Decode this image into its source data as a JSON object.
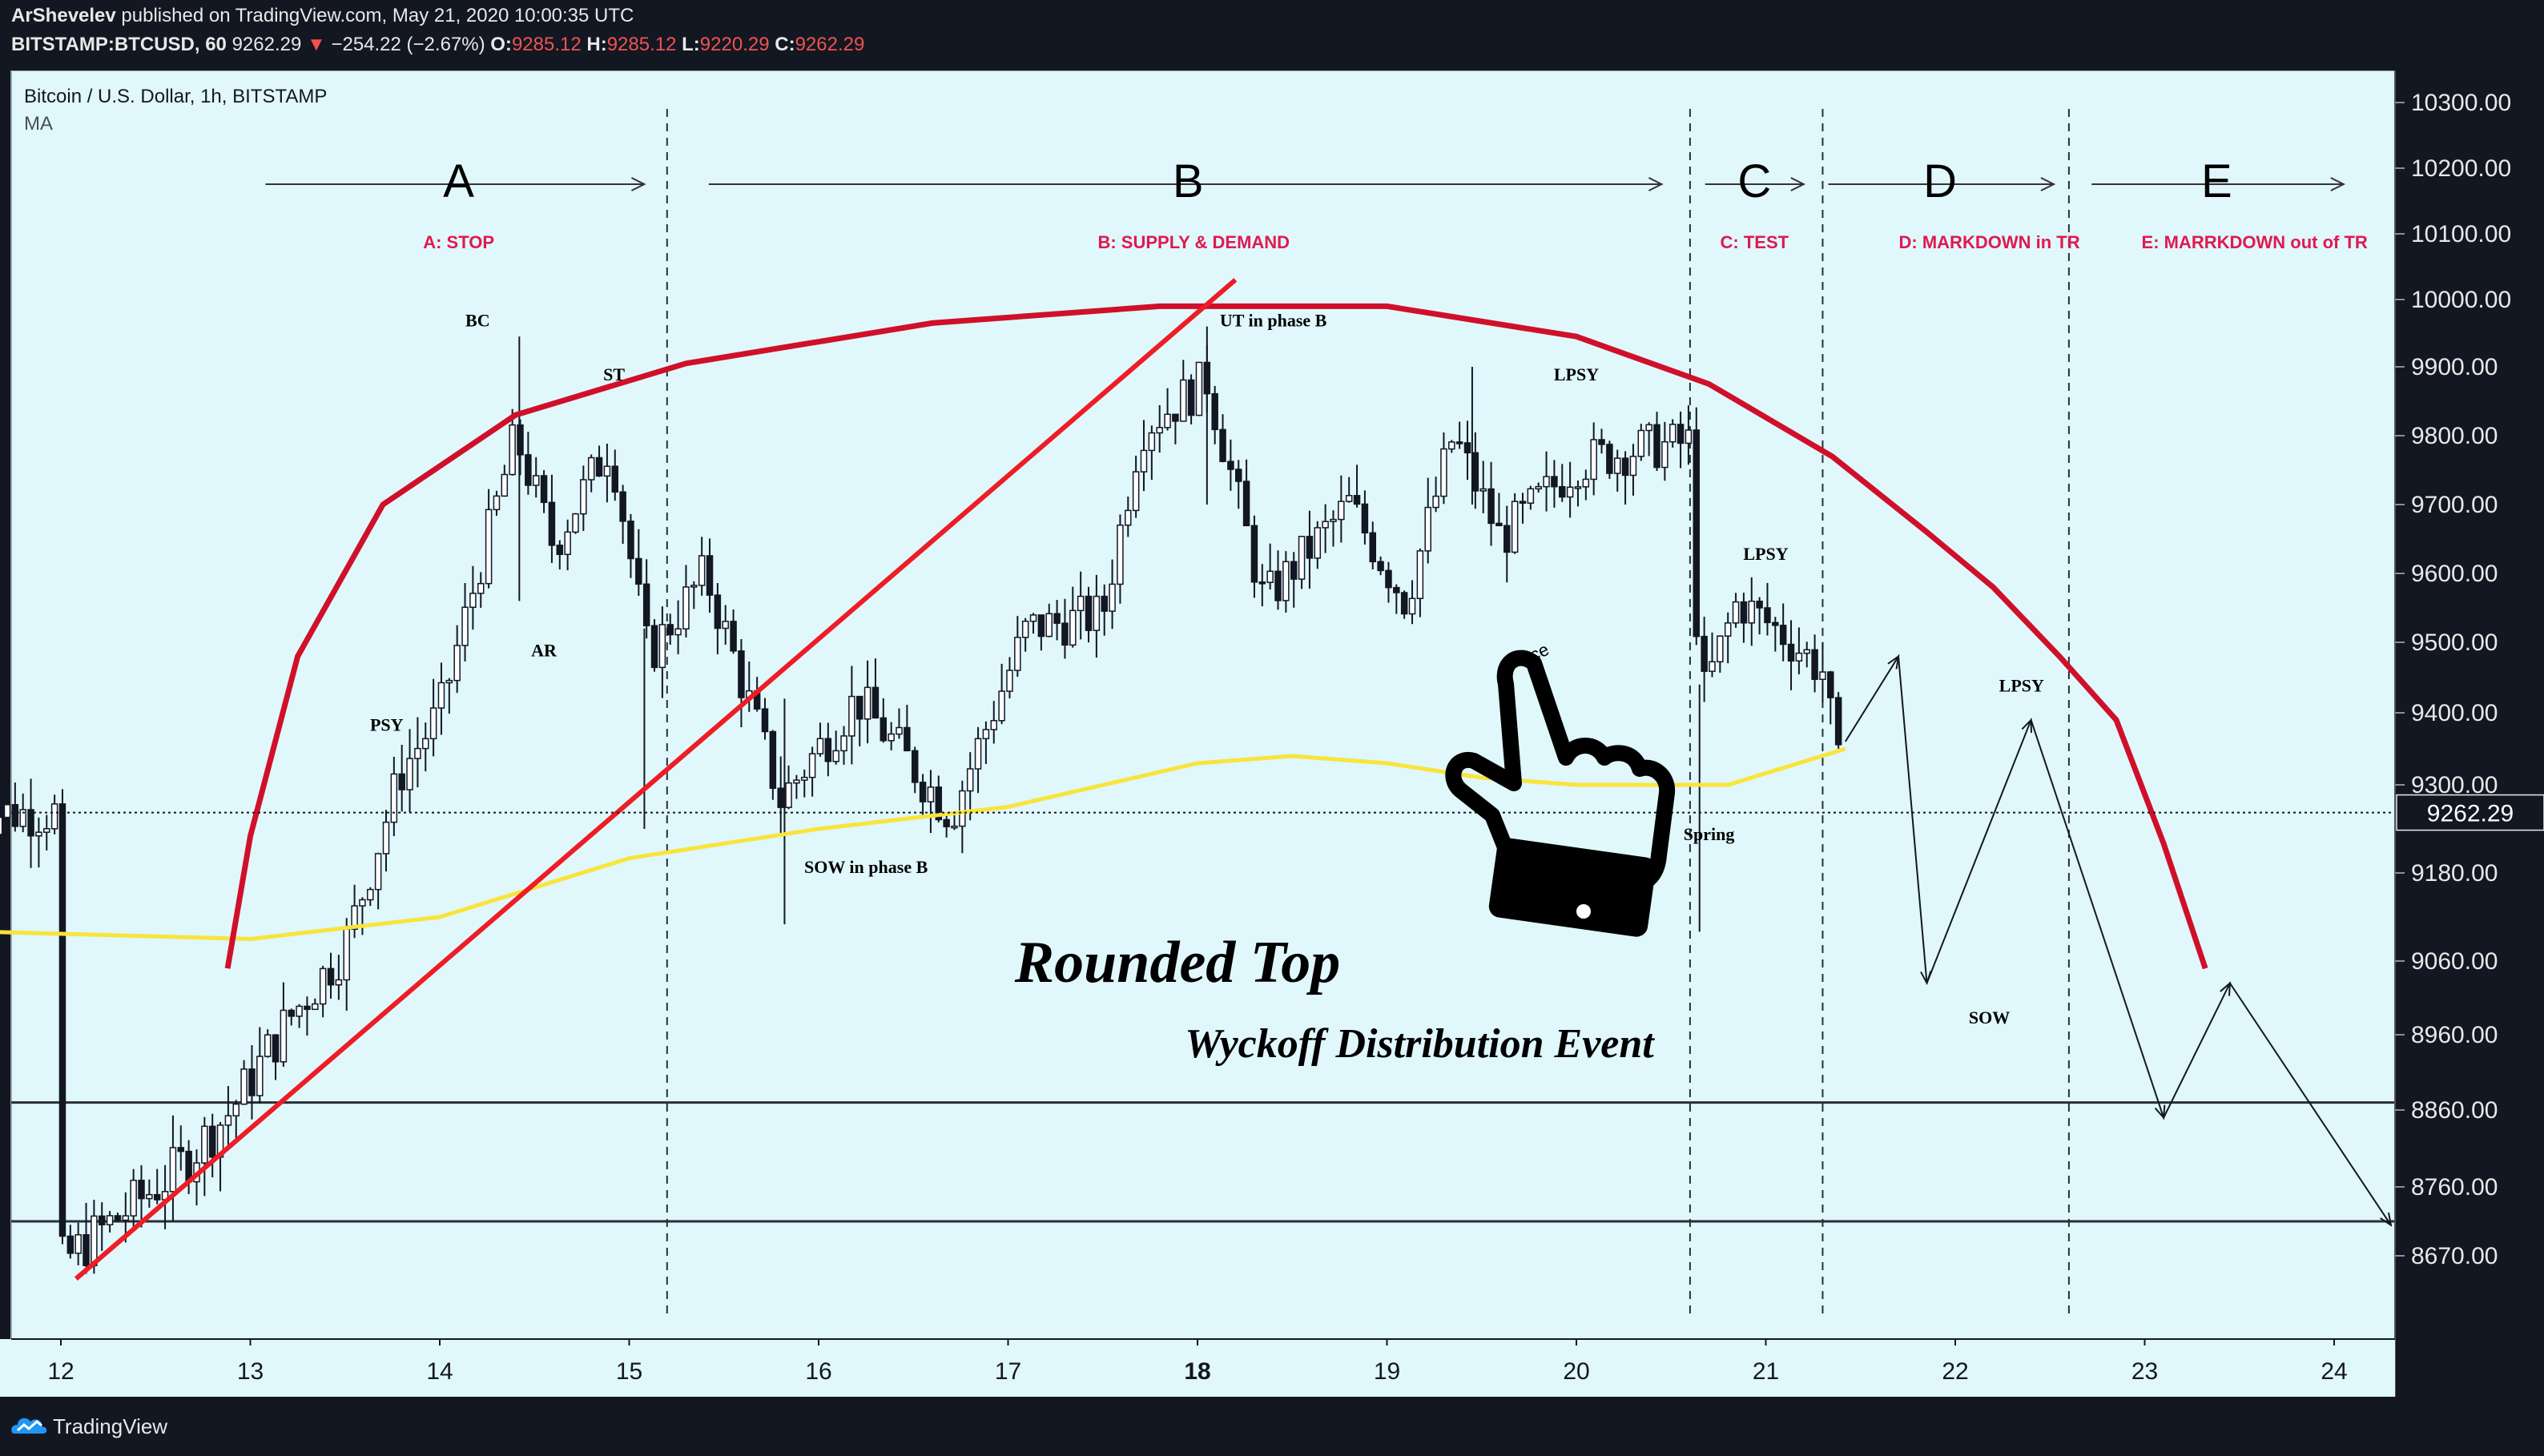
{
  "header": {
    "author": "ArShevelev",
    "published": "published on TradingView.com, May 21, 2020 10:00:35 UTC",
    "symbol": "BITSTAMP:BTCUSD, 60",
    "last": "9262.29",
    "change_arrow": "▼",
    "change": "−254.22 (−2.67%)",
    "o_label": "O:",
    "o_value": "9285.12",
    "h_label": "H:",
    "h_value": "9285.12",
    "l_label": "L:",
    "l_value": "9220.29",
    "c_label": "C:",
    "c_value": "9262.29"
  },
  "footer": {
    "brand": "TradingView"
  },
  "colors": {
    "panel_bg": "#131722",
    "plot_bg": "#e0f7fc",
    "candle": "#131722",
    "rounded_top": "#d0102a",
    "trendline": "#ee1c25",
    "ma": "#f9e43a",
    "phase_label": "#e0194f",
    "last_price_box": "#131722"
  },
  "chart_data": {
    "type": "candlestick",
    "title": "Bitcoin / U.S. Dollar, 1h, BITSTAMP",
    "indicator": "MA",
    "y_axis_labels": [
      "10300.00",
      "10200.00",
      "10100.00",
      "10000.00",
      "9900.00",
      "9800.00",
      "9700.00",
      "9600.00",
      "9500.00",
      "9400.00",
      "9300.00",
      "9180.00",
      "9060.00",
      "8960.00",
      "8860.00",
      "8760.00",
      "8670.00"
    ],
    "y_axis_values": [
      10300,
      10200,
      10100,
      10000,
      9900,
      9800,
      9700,
      9600,
      9500,
      9400,
      9300,
      9180,
      9060,
      8960,
      8860,
      8760,
      8670
    ],
    "x_axis_labels": [
      "12",
      "13",
      "14",
      "15",
      "16",
      "17",
      "18",
      "19",
      "20",
      "21",
      "22",
      "23",
      "24"
    ],
    "last_price": "9262.29",
    "phases": [
      {
        "letter": "A",
        "label": "A: STOP"
      },
      {
        "letter": "B",
        "label": "B: SUPPLY & DEMAND"
      },
      {
        "letter": "C",
        "label": "C: TEST"
      },
      {
        "letter": "D",
        "label": "D: MARKDOWN in TR"
      },
      {
        "letter": "E",
        "label": "E: MARRKDOWN out of TR"
      }
    ],
    "events": [
      "BC",
      "ST",
      "AR",
      "PSY",
      "UT in phase B",
      "LPSY",
      "SOW in phase B",
      "LPSY",
      "Spring",
      "LPSY",
      "SOW"
    ],
    "main_title": "Rounded Top",
    "subtitle": "Wyckoff Distribution Event",
    "watermark": "ice",
    "support_levels": [
      8870,
      8715
    ],
    "series": {
      "hourly_close_keypoints": [
        {
          "x": 12.0,
          "close": 8660
        },
        {
          "x": 12.6,
          "close": 8780
        },
        {
          "x": 12.9,
          "close": 8860
        },
        {
          "x": 13.2,
          "close": 8980
        },
        {
          "x": 13.5,
          "close": 9080
        },
        {
          "x": 13.8,
          "close": 9320
        },
        {
          "x": 14.0,
          "close": 9400
        },
        {
          "x": 14.2,
          "close": 9600
        },
        {
          "x": 14.4,
          "close": 9800
        },
        {
          "x": 14.6,
          "close": 9640
        },
        {
          "x": 14.9,
          "close": 9790
        },
        {
          "x": 15.1,
          "close": 9480
        },
        {
          "x": 15.4,
          "close": 9600
        },
        {
          "x": 15.8,
          "close": 9280
        },
        {
          "x": 16.2,
          "close": 9420
        },
        {
          "x": 16.7,
          "close": 9260
        },
        {
          "x": 17.1,
          "close": 9520
        },
        {
          "x": 17.5,
          "close": 9540
        },
        {
          "x": 17.7,
          "close": 9810
        },
        {
          "x": 18.05,
          "close": 9880
        },
        {
          "x": 18.35,
          "close": 9560
        },
        {
          "x": 18.8,
          "close": 9700
        },
        {
          "x": 19.1,
          "close": 9560
        },
        {
          "x": 19.35,
          "close": 9800
        },
        {
          "x": 19.6,
          "close": 9650
        },
        {
          "x": 20.0,
          "close": 9760
        },
        {
          "x": 20.3,
          "close": 9780
        },
        {
          "x": 20.6,
          "close": 9790
        },
        {
          "x": 20.65,
          "close": 9410
        },
        {
          "x": 20.85,
          "close": 9560
        },
        {
          "x": 21.1,
          "close": 9510
        },
        {
          "x": 21.3,
          "close": 9460
        },
        {
          "x": 21.42,
          "close": 9262
        }
      ],
      "ma": [
        {
          "x": 11.6,
          "y": 9100
        },
        {
          "x": 13.0,
          "y": 9090
        },
        {
          "x": 14.0,
          "y": 9120
        },
        {
          "x": 15.0,
          "y": 9200
        },
        {
          "x": 16.0,
          "y": 9240
        },
        {
          "x": 17.0,
          "y": 9270
        },
        {
          "x": 18.0,
          "y": 9330
        },
        {
          "x": 18.5,
          "y": 9340
        },
        {
          "x": 19.0,
          "y": 9330
        },
        {
          "x": 19.5,
          "y": 9310
        },
        {
          "x": 20.0,
          "y": 9300
        },
        {
          "x": 20.8,
          "y": 9300
        },
        {
          "x": 21.42,
          "y": 9350
        }
      ],
      "projection": [
        {
          "x": 21.42,
          "y": 9360
        },
        {
          "x": 21.7,
          "y": 9480
        },
        {
          "x": 21.85,
          "y": 9030
        },
        {
          "x": 22.4,
          "y": 9390
        },
        {
          "x": 23.1,
          "y": 8850
        },
        {
          "x": 23.45,
          "y": 9030
        },
        {
          "x": 24.3,
          "y": 8710
        }
      ]
    }
  }
}
